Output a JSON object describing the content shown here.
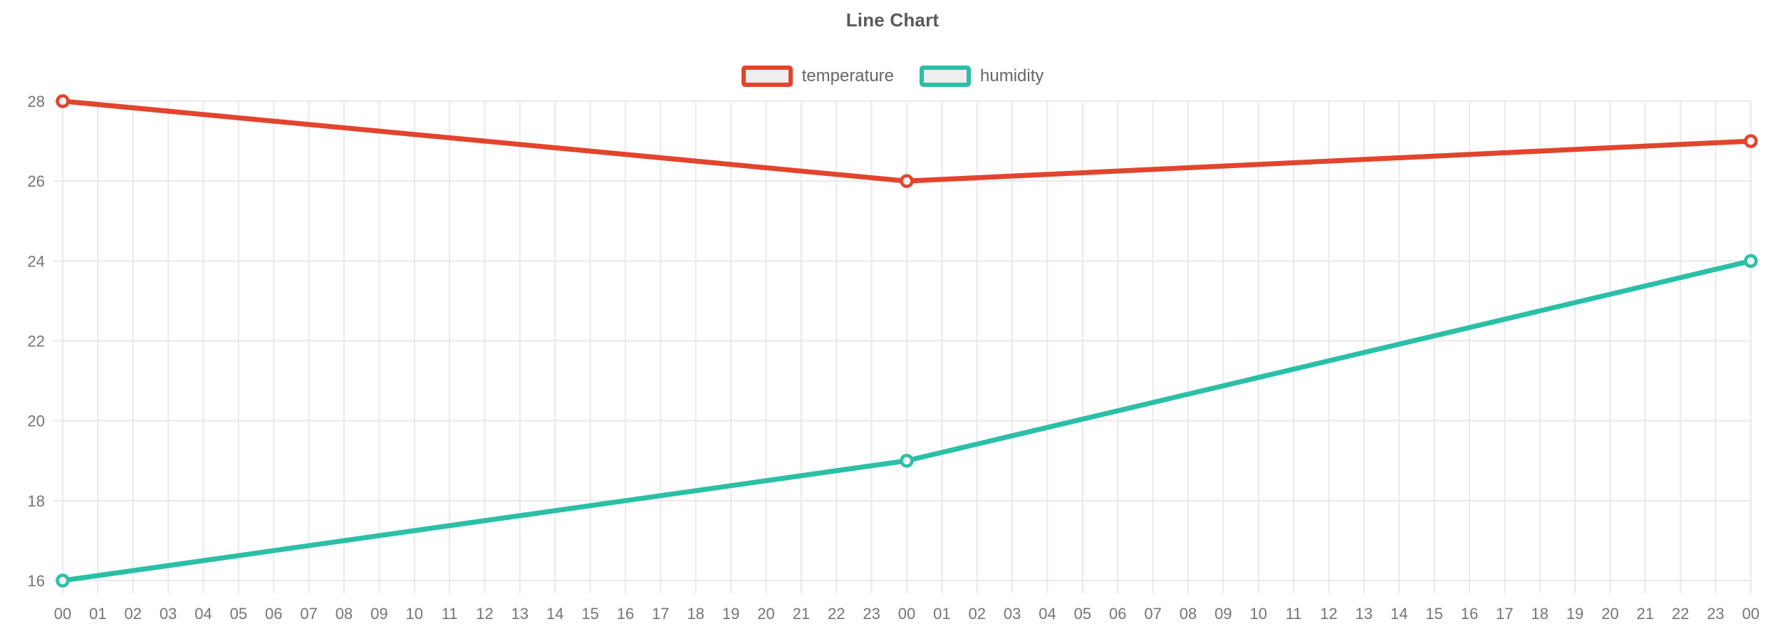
{
  "chart_data": {
    "type": "line",
    "title": "Line Chart",
    "x_tick_labels": [
      "00",
      "01",
      "02",
      "03",
      "04",
      "05",
      "06",
      "07",
      "08",
      "09",
      "10",
      "11",
      "12",
      "13",
      "14",
      "15",
      "16",
      "17",
      "18",
      "19",
      "20",
      "21",
      "22",
      "23",
      "00",
      "01",
      "02",
      "03",
      "04",
      "05",
      "06",
      "07",
      "08",
      "09",
      "10",
      "11",
      "12",
      "13",
      "14",
      "15",
      "16",
      "17",
      "18",
      "19",
      "20",
      "21",
      "22",
      "23",
      "00"
    ],
    "y_ticks": [
      16,
      18,
      20,
      22,
      24,
      26,
      28
    ],
    "ylim": [
      16,
      28
    ],
    "grid": true,
    "legend_position": "top",
    "series": [
      {
        "name": "temperature",
        "color": "#e2442d",
        "x_index": [
          0,
          24,
          48
        ],
        "values": [
          28,
          26,
          27
        ]
      },
      {
        "name": "humidity",
        "color": "#2abfa7",
        "x_index": [
          0,
          24,
          48
        ],
        "values": [
          16,
          19,
          24
        ]
      }
    ],
    "style": {
      "grid_color": "#e9e9e9",
      "axis_text_color": "#757575",
      "marker_fill": "#f2f2f2",
      "line_width": 7,
      "legend_box_fill": "#eeeeee"
    }
  }
}
